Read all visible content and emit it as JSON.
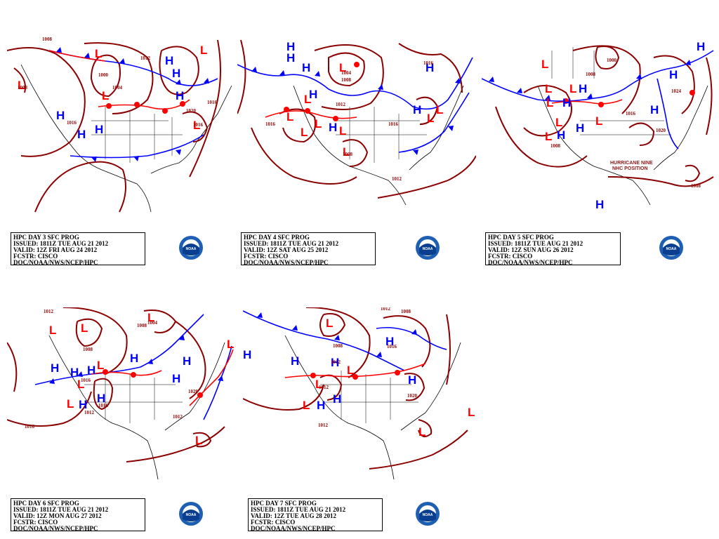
{
  "panels": [
    {
      "title": "HPC DAY 3 SFC PROG",
      "issued": "ISSUED: 1811Z TUE AUG 21 2012",
      "valid": "VALID: 12Z FRI AUG 24 2012",
      "fcstr": "FCSTR: CISCO",
      "agency": "DOC/NOAA/NWS/NCEP/HPC",
      "isobars": [
        "1008",
        "1008",
        "1000",
        "1004",
        "1012",
        "1016",
        "1016",
        "1020",
        "1016"
      ]
    },
    {
      "title": "HPC DAY 4 SFC PROG",
      "issued": "ISSUED: 1811Z TUE AUG 21 2012",
      "valid": "VALID: 12Z SAT AUG 25 2012",
      "fcstr": "FCSTR: CISCO",
      "agency": "DOC/NOAA/NWS/NCEP/HPC",
      "isobars": [
        "1004",
        "1008",
        "1012",
        "1016",
        "1016",
        "1008",
        "1012",
        "1016"
      ]
    },
    {
      "title": "HPC DAY 5 SFC PROG",
      "issued": "ISSUED: 1811Z TUE AUG 21 2012",
      "valid": "VALID: 12Z SUN AUG 26 2012",
      "fcstr": "FCSTR: CISCO",
      "agency": "DOC/NOAA/NWS/NCEP/HPC",
      "isobars": [
        "1000",
        "1008",
        "1024",
        "1016",
        "1020",
        "1008",
        "1008"
      ],
      "annotation1": "HURRICANE NINE",
      "annotation2": "NHC POSITION"
    },
    {
      "title": "HPC DAY 6 SFC PROG",
      "issued": "ISSUED: 1811Z TUE AUG 21 2012",
      "valid": "VALID: 12Z MON AUG 27 2012",
      "fcstr": "FCSTR: CISCO",
      "agency": "DOC/NOAA/NWS/NCEP/HPC",
      "isobars": [
        "1012",
        "1008",
        "1004",
        "1008",
        "1012",
        "1016",
        "1016",
        "1012",
        "1020",
        "1016"
      ]
    },
    {
      "title": "HPC DAY 7 SFC PROG",
      "issued": "ISSUED: 1811Z TUE AUG 21 2012",
      "valid": "VALID: 12Z TUE AUG 28 2012",
      "fcstr": "FCSTR: CISCO",
      "agency": "DOC/NOAA/NWS/NCEP/HPC",
      "isobars": [
        "1012",
        "1008",
        "1008",
        "1016",
        "1012",
        "1012",
        "1020",
        "1012"
      ]
    }
  ],
  "symbols": {
    "high": "H",
    "low": "L"
  },
  "logo_text": "NOAA",
  "colors": {
    "isobar": "#8b0000",
    "high": "#0000ff",
    "low": "#ff0000",
    "front_cold": "#0000ff",
    "front_warm": "#ff0000",
    "background": "#ffffff"
  }
}
